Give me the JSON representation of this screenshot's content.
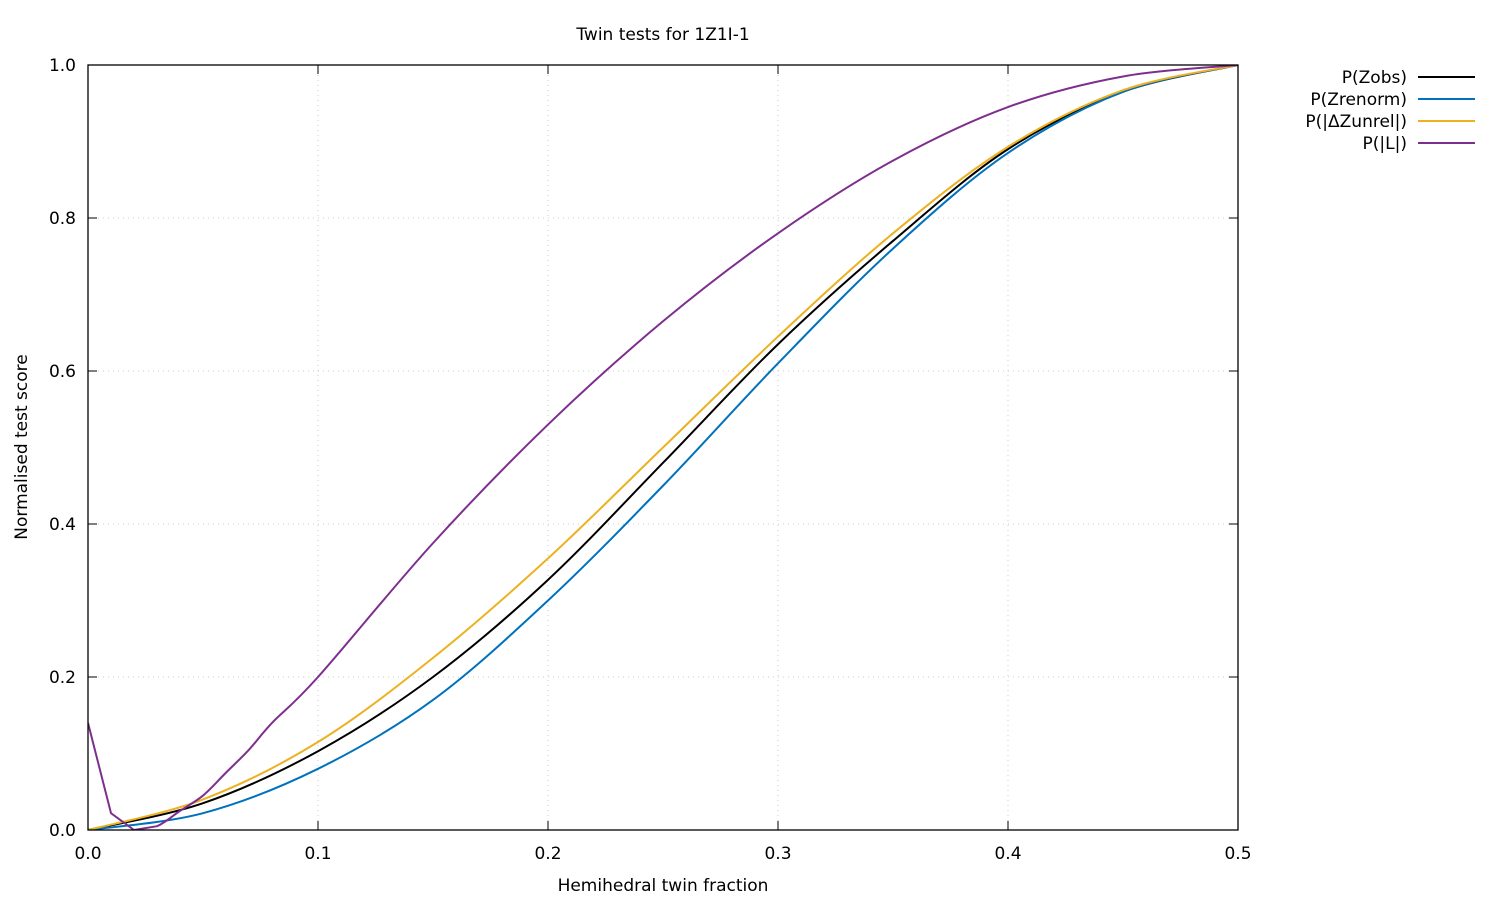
{
  "chart_data": {
    "type": "line",
    "title": "Twin tests for 1Z1I-1",
    "xlabel": "Hemihedral twin fraction",
    "ylabel": "Normalised test score",
    "xlim": [
      0,
      0.5
    ],
    "ylim": [
      0,
      1.0
    ],
    "xticks": [
      "0.0",
      "0.1",
      "0.2",
      "0.3",
      "0.4",
      "0.5"
    ],
    "yticks": [
      "0.0",
      "0.2",
      "0.4",
      "0.6",
      "0.8",
      "1.0"
    ],
    "grid": true,
    "legend_position": "outside-top-right",
    "series": [
      {
        "name": "P(Zobs)",
        "color": "#000000",
        "x": [
          0,
          0.05,
          0.1,
          0.15,
          0.2,
          0.25,
          0.3,
          0.35,
          0.4,
          0.45,
          0.5
        ],
        "y": [
          0,
          0.035,
          0.103,
          0.2,
          0.327,
          0.48,
          0.635,
          0.77,
          0.89,
          0.965,
          1.0
        ]
      },
      {
        "name": "P(Zrenorm)",
        "color": "#0072bd",
        "x": [
          0,
          0.05,
          0.1,
          0.15,
          0.2,
          0.25,
          0.3,
          0.35,
          0.4,
          0.45,
          0.5
        ],
        "y": [
          0,
          0.022,
          0.08,
          0.17,
          0.3,
          0.45,
          0.61,
          0.76,
          0.885,
          0.965,
          1.0
        ]
      },
      {
        "name": "P(|ΔZunrel|)",
        "color": "#edb120",
        "x": [
          0,
          0.05,
          0.1,
          0.15,
          0.2,
          0.25,
          0.3,
          0.35,
          0.4,
          0.45,
          0.5
        ],
        "y": [
          0,
          0.04,
          0.115,
          0.225,
          0.355,
          0.5,
          0.645,
          0.78,
          0.893,
          0.967,
          1.0
        ]
      },
      {
        "name": "P(|L|)",
        "color": "#7e2f8e",
        "x": [
          0,
          0.01,
          0.02,
          0.03,
          0.04,
          0.05,
          0.06,
          0.07,
          0.08,
          0.1,
          0.15,
          0.2,
          0.25,
          0.3,
          0.35,
          0.4,
          0.45,
          0.5
        ],
        "y": [
          0.14,
          0.022,
          0.0,
          0.005,
          0.025,
          0.045,
          0.075,
          0.105,
          0.14,
          0.2,
          0.375,
          0.53,
          0.665,
          0.78,
          0.875,
          0.945,
          0.985,
          1.0
        ]
      }
    ]
  }
}
